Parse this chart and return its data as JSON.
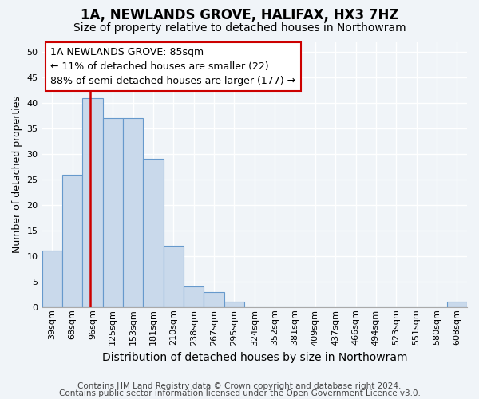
{
  "title1": "1A, NEWLANDS GROVE, HALIFAX, HX3 7HZ",
  "title2": "Size of property relative to detached houses in Northowram",
  "xlabel": "Distribution of detached houses by size in Northowram",
  "ylabel": "Number of detached properties",
  "bin_labels": [
    "39sqm",
    "68sqm",
    "96sqm",
    "125sqm",
    "153sqm",
    "181sqm",
    "210sqm",
    "238sqm",
    "267sqm",
    "295sqm",
    "324sqm",
    "352sqm",
    "381sqm",
    "409sqm",
    "437sqm",
    "466sqm",
    "494sqm",
    "523sqm",
    "551sqm",
    "580sqm",
    "608sqm"
  ],
  "bar_heights": [
    11,
    26,
    41,
    37,
    37,
    29,
    12,
    4,
    3,
    1,
    0,
    0,
    0,
    0,
    0,
    0,
    0,
    0,
    0,
    0,
    1
  ],
  "bar_color": "#c9d9eb",
  "bar_edge_color": "#6699cc",
  "vline_position": 1.9,
  "vline_color": "#cc0000",
  "annotation_text": "1A NEWLANDS GROVE: 85sqm\n← 11% of detached houses are smaller (22)\n88% of semi-detached houses are larger (177) →",
  "annotation_box_color": "#cc0000",
  "footer1": "Contains HM Land Registry data © Crown copyright and database right 2024.",
  "footer2": "Contains public sector information licensed under the Open Government Licence v3.0.",
  "ylim": [
    0,
    52
  ],
  "xlim": [
    -0.5,
    20.5
  ],
  "yticks": [
    0,
    5,
    10,
    15,
    20,
    25,
    30,
    35,
    40,
    45,
    50
  ],
  "bg_color": "#f0f4f8",
  "plot_bg_color": "#f0f4f8",
  "grid_color": "#ffffff",
  "title1_fontsize": 12,
  "title2_fontsize": 10,
  "xlabel_fontsize": 10,
  "ylabel_fontsize": 9,
  "tick_fontsize": 8,
  "annotation_fontsize": 9,
  "footer_fontsize": 7.5
}
